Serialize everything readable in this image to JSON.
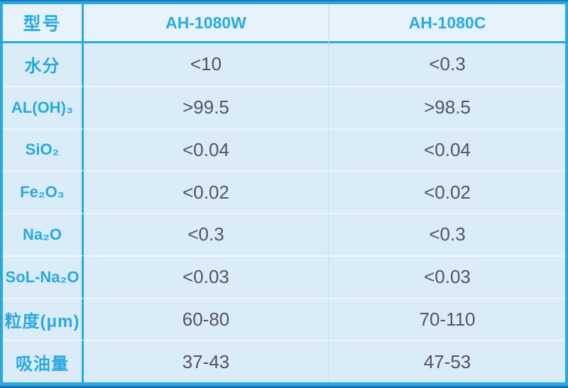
{
  "table": {
    "header": {
      "model": "型号",
      "col_w": "AH-1080W",
      "col_c": "AH-1080C"
    },
    "rows": [
      {
        "label": "水分",
        "w": "<10",
        "c": "<0.3"
      },
      {
        "label": "AL(OH)₃",
        "w": ">99.5",
        "c": ">98.5"
      },
      {
        "label": "SiO₂",
        "w": "<0.04",
        "c": "<0.04"
      },
      {
        "label": "Fe₂O₃",
        "w": "<0.02",
        "c": "<0.02"
      },
      {
        "label": "Na₂O",
        "w": "<0.3",
        "c": "<0.3"
      },
      {
        "label": "SoL-Na₂O",
        "w": "<0.03",
        "c": "<0.03"
      },
      {
        "label": "粒度(μm)",
        "w": "60-80",
        "c": "70-110"
      },
      {
        "label": "吸油量",
        "w": "37-43",
        "c": "47-53"
      }
    ]
  },
  "colors": {
    "accent_cyan": "#29a9e1",
    "dark_edge": "#1a78b4",
    "header_bg": "#e7f3fb",
    "body_bg": "#daecf8",
    "value_text": "#53565a",
    "row_separator": "#eef6fc",
    "column_separator": "#cfe4f2"
  }
}
